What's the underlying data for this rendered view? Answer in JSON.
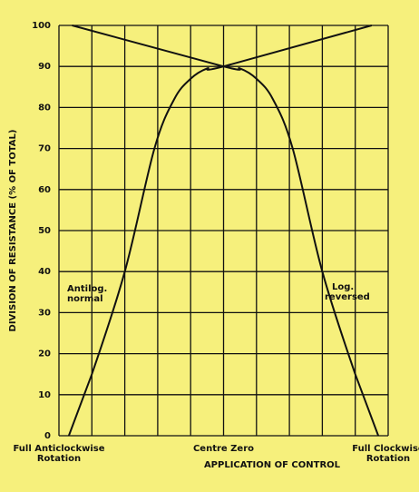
{
  "chart_data": {
    "type": "line",
    "x_label": "APPLICATION OF CONTROL",
    "y_label": "DIVISION OF RESISTANCE (% OF TOTAL)",
    "x_positions": [
      {
        "value": 0,
        "label": "Full Anticlockwise Rotation"
      },
      {
        "value": 5,
        "label": "Centre Zero"
      },
      {
        "value": 10,
        "label": "Full Clockwise Rotation"
      }
    ],
    "xlim": [
      0,
      10
    ],
    "xticks": [
      0,
      1,
      2,
      3,
      4,
      5,
      6,
      7,
      8,
      9,
      10
    ],
    "ylim": [
      0,
      100
    ],
    "yticks": [
      0,
      10,
      20,
      30,
      40,
      50,
      60,
      70,
      80,
      90,
      100
    ],
    "grid": true,
    "color": "#111111",
    "series": [
      {
        "label_lines": [
          "Antilog.",
          "normal"
        ],
        "x": [
          0.3,
          1,
          2,
          2.9,
          3.5,
          4,
          4.5,
          5,
          9.5
        ],
        "values": [
          0,
          15,
          40,
          70,
          82,
          87,
          89.5,
          90,
          100
        ]
      },
      {
        "label_lines": [
          "Log.",
          "reversed"
        ],
        "x": [
          0.4,
          5,
          5.5,
          6,
          6.5,
          7.1,
          8,
          9,
          9.7
        ],
        "values": [
          100,
          90,
          89.5,
          87,
          82,
          70,
          40,
          15,
          0
        ]
      }
    ]
  }
}
